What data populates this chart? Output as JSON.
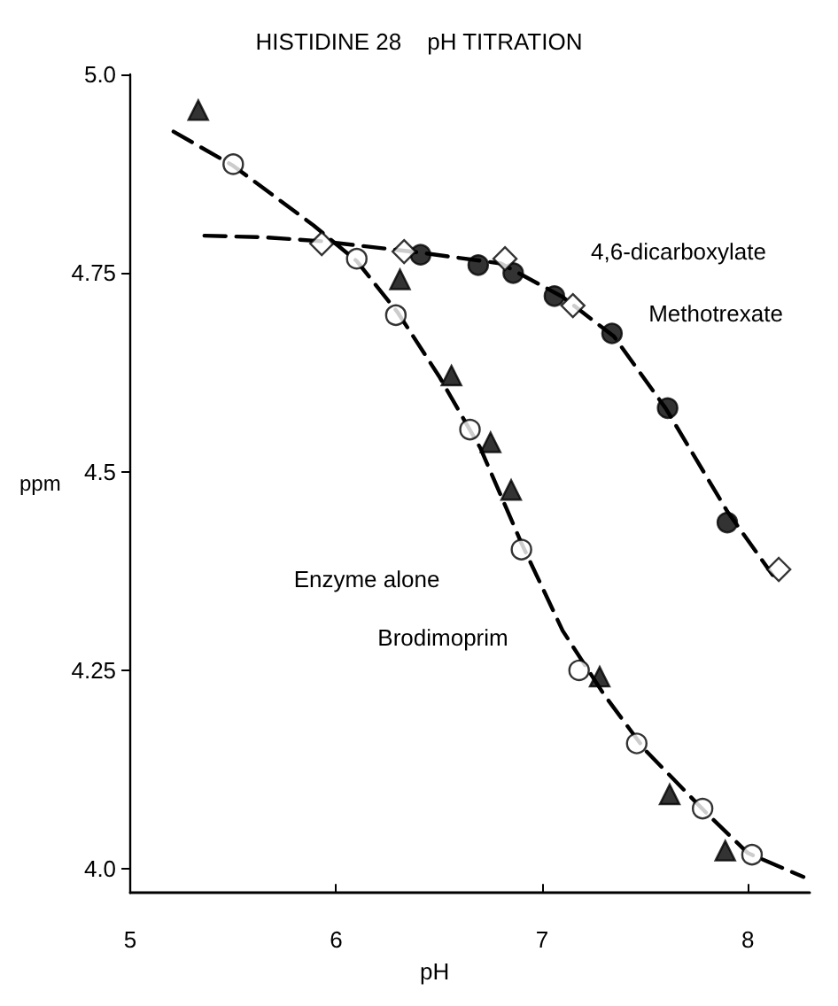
{
  "chart_data": {
    "type": "scatter",
    "title": "HISTIDINE 28    pH TITRATION",
    "xlabel": "pH",
    "ylabel": "ppm",
    "xlim": [
      5,
      8.3
    ],
    "xticks": [
      5,
      6,
      7,
      8
    ],
    "ylim": [
      3.97,
      5.0
    ],
    "yticks": [
      {
        "value": 4.0,
        "label": "4.0"
      },
      4.25,
      {
        "value": 4.5,
        "label": "4.5"
      },
      4.75,
      {
        "value": 5.0,
        "label": "5.0"
      }
    ],
    "grid": false,
    "series": [
      {
        "marker": "triangle",
        "color": "#000000",
        "x": [
          5.33,
          6.31,
          6.56,
          6.75,
          6.85,
          7.28,
          7.62,
          7.89
        ],
        "values": [
          4.955,
          4.742,
          4.621,
          4.537,
          4.477,
          4.242,
          4.094,
          4.023
        ]
      },
      {
        "marker": "circle",
        "color": "#ffffff",
        "x": [
          5.5,
          6.1,
          6.29,
          6.65,
          6.9,
          7.18,
          7.46,
          7.78,
          8.02
        ],
        "values": [
          4.887,
          4.768,
          4.697,
          4.553,
          4.402,
          4.25,
          4.158,
          4.076,
          4.018
        ]
      },
      {
        "marker": "circle",
        "color": "#000000",
        "x": [
          6.41,
          6.69,
          6.86,
          7.06,
          7.34,
          7.61,
          7.9
        ],
        "values": [
          4.773,
          4.76,
          4.75,
          4.721,
          4.674,
          4.58,
          4.436
        ]
      },
      {
        "marker": "diamond",
        "color": "#ffffff",
        "x": [
          5.93,
          6.33,
          6.82,
          7.15,
          8.15
        ],
        "values": [
          4.787,
          4.777,
          4.768,
          4.709,
          4.377
        ]
      },
      {
        "type": "line",
        "marker": "none",
        "line_style": "dashed",
        "color": "#000000",
        "x": [
          5.21,
          5.5,
          5.89,
          6.1,
          6.3,
          6.5,
          6.7,
          6.9,
          7.1,
          7.3,
          7.5,
          7.8,
          8.0,
          8.27
        ],
        "values": [
          4.928,
          4.885,
          4.81,
          4.765,
          4.7,
          4.62,
          4.53,
          4.41,
          4.3,
          4.22,
          4.15,
          4.07,
          4.02,
          3.99
        ]
      },
      {
        "type": "line",
        "marker": "none",
        "line_style": "dashed",
        "color": "#000000",
        "x": [
          5.36,
          5.65,
          5.93,
          6.4,
          6.8,
          7.1,
          7.35,
          7.6,
          7.9,
          8.12
        ],
        "values": [
          4.797,
          4.795,
          4.79,
          4.776,
          4.762,
          4.72,
          4.67,
          4.58,
          4.45,
          4.37
        ]
      }
    ],
    "annotations": [
      "4,6-dicarboxylate",
      "Methotrexate",
      "Enzyme alone",
      "Brodimoprim"
    ]
  }
}
